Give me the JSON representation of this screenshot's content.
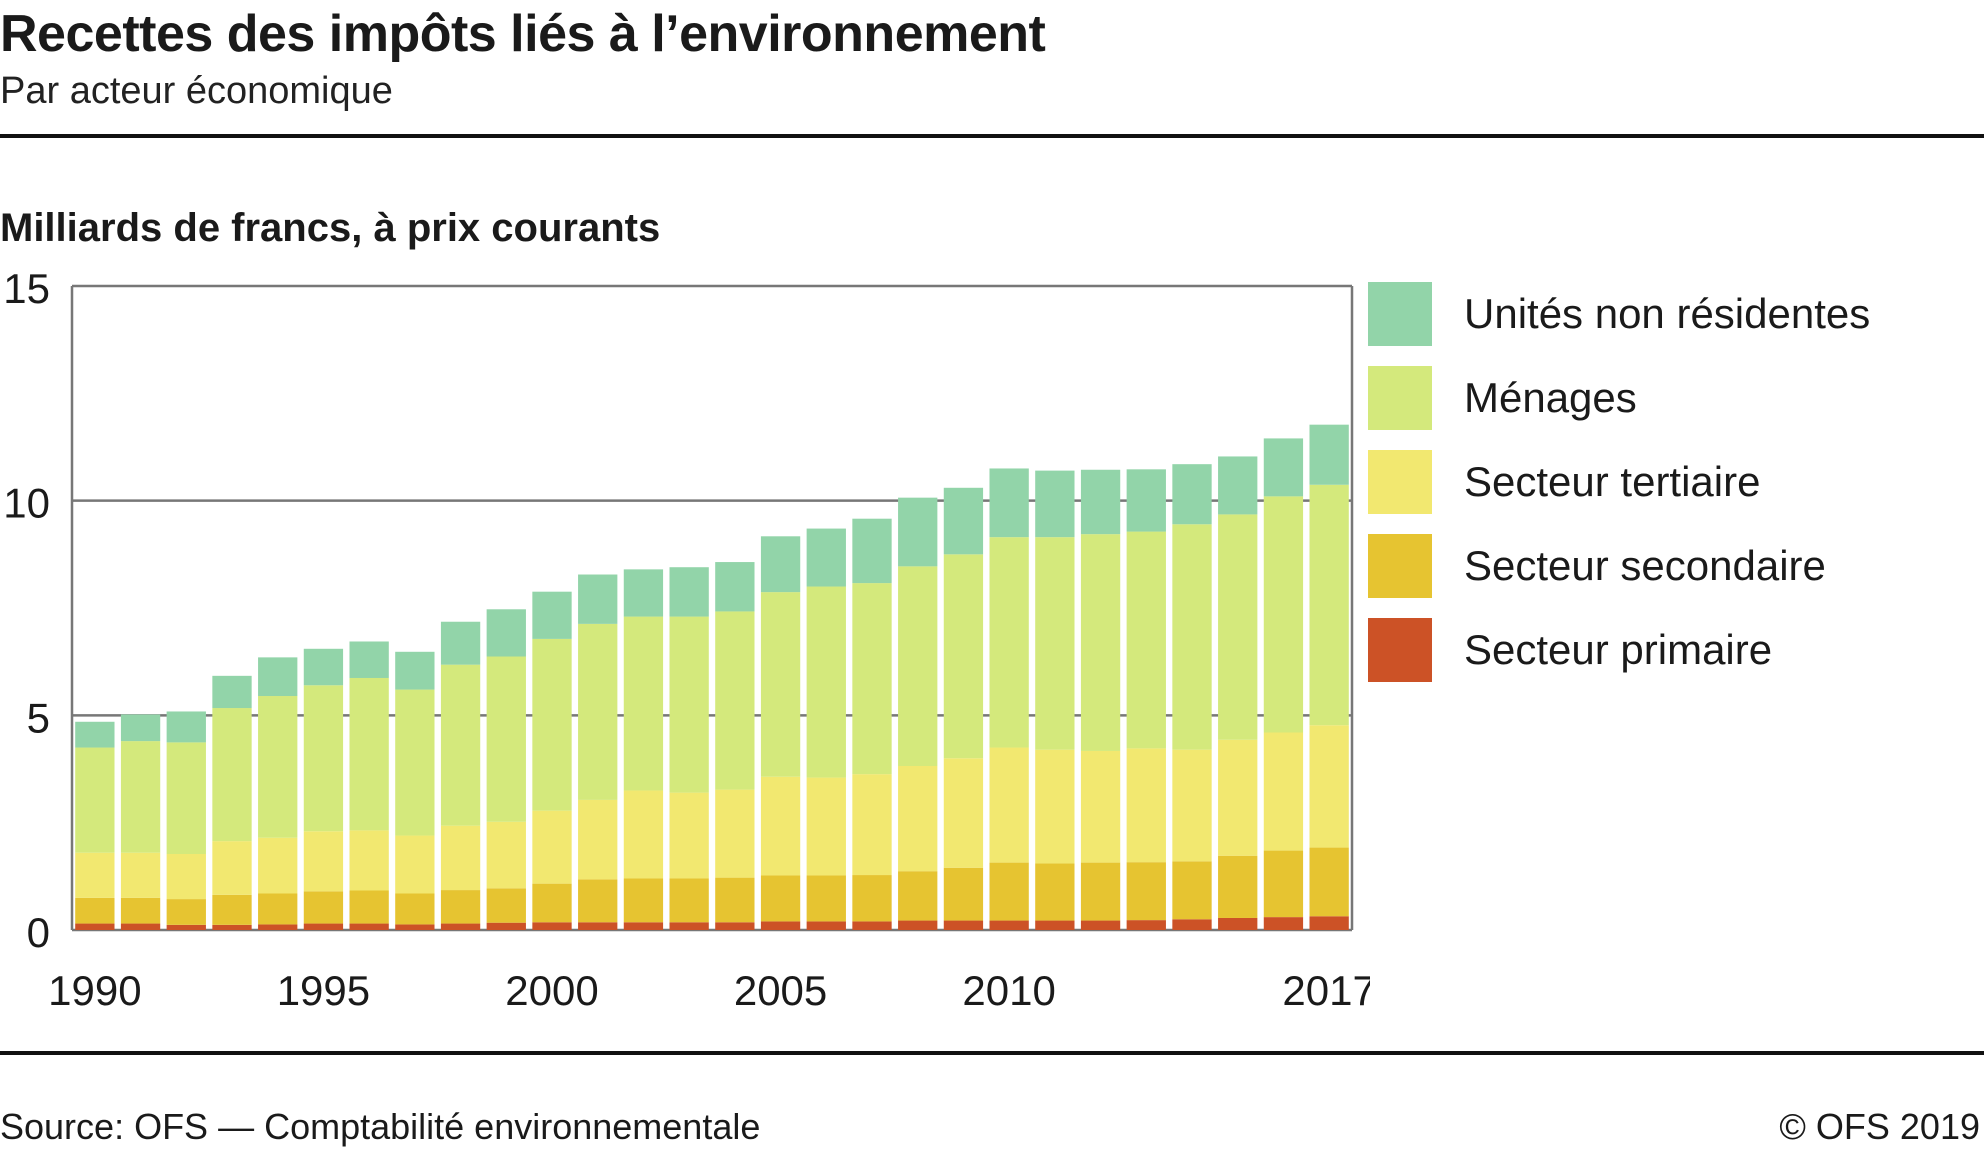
{
  "header": {
    "title": "Recettes des impôts liés à l’environnement",
    "subtitle": "Par acteur économique"
  },
  "unit_label": "Milliards de francs, à prix courants",
  "footer": {
    "source": "Source: OFS — Comptabilité environnementale",
    "copyright": "© OFS 2019"
  },
  "colors": {
    "Secteur primaire": "#cc5226",
    "Secteur secondaire": "#e6c431",
    "Secteur tertiaire": "#f2e870",
    "Ménages": "#d4e97c",
    "Unités non résidentes": "#92d4a9"
  },
  "legend": [
    {
      "label": "Unités non résidentes",
      "color": "#92d4a9"
    },
    {
      "label": "Ménages",
      "color": "#d4e97c"
    },
    {
      "label": "Secteur tertiaire",
      "color": "#f2e870"
    },
    {
      "label": "Secteur secondaire",
      "color": "#e6c431"
    },
    {
      "label": "Secteur primaire",
      "color": "#cc5226"
    }
  ],
  "chart_data": {
    "type": "bar",
    "stacked": true,
    "title": "Recettes des impôts liés à l’environnement",
    "subtitle": "Par acteur économique",
    "ylabel": "Milliards de francs, à prix courants",
    "ylim": [
      0,
      15
    ],
    "yticks": [
      0,
      5,
      10,
      15
    ],
    "grid": true,
    "legend_position": "right",
    "categories": [
      1990,
      1991,
      1992,
      1993,
      1994,
      1995,
      1996,
      1997,
      1998,
      1999,
      2000,
      2001,
      2002,
      2003,
      2004,
      2005,
      2006,
      2007,
      2008,
      2009,
      2010,
      2011,
      2012,
      2013,
      2014,
      2015,
      2016,
      2017
    ],
    "xtick_labels": [
      "1990",
      "1995",
      "2000",
      "2005",
      "2010",
      "2017"
    ],
    "series": [
      {
        "name": "Secteur primaire",
        "values": [
          0.15,
          0.15,
          0.12,
          0.12,
          0.13,
          0.15,
          0.15,
          0.13,
          0.15,
          0.17,
          0.18,
          0.18,
          0.18,
          0.18,
          0.18,
          0.2,
          0.2,
          0.2,
          0.22,
          0.22,
          0.22,
          0.22,
          0.22,
          0.23,
          0.25,
          0.28,
          0.3,
          0.32
        ]
      },
      {
        "name": "Secteur secondaire",
        "values": [
          0.6,
          0.6,
          0.6,
          0.7,
          0.72,
          0.75,
          0.77,
          0.72,
          0.78,
          0.8,
          0.9,
          1.0,
          1.02,
          1.02,
          1.04,
          1.07,
          1.07,
          1.08,
          1.15,
          1.23,
          1.35,
          1.33,
          1.35,
          1.35,
          1.35,
          1.45,
          1.55,
          1.6
        ]
      },
      {
        "name": "Secteur tertiaire",
        "values": [
          1.05,
          1.05,
          1.05,
          1.25,
          1.3,
          1.4,
          1.4,
          1.35,
          1.5,
          1.55,
          1.7,
          1.85,
          2.05,
          2.0,
          2.05,
          2.3,
          2.28,
          2.35,
          2.45,
          2.55,
          2.68,
          2.65,
          2.6,
          2.65,
          2.6,
          2.7,
          2.75,
          2.85
        ]
      },
      {
        "name": "Ménages",
        "values": [
          2.45,
          2.6,
          2.6,
          3.1,
          3.3,
          3.4,
          3.55,
          3.4,
          3.75,
          3.85,
          4.0,
          4.1,
          4.05,
          4.1,
          4.15,
          4.3,
          4.45,
          4.45,
          4.65,
          4.75,
          4.9,
          4.95,
          5.05,
          5.05,
          5.25,
          5.25,
          5.5,
          5.6
        ]
      },
      {
        "name": "Unités non résidentes",
        "values": [
          0.6,
          0.62,
          0.72,
          0.75,
          0.9,
          0.85,
          0.85,
          0.88,
          1.0,
          1.1,
          1.1,
          1.15,
          1.1,
          1.15,
          1.15,
          1.3,
          1.35,
          1.5,
          1.6,
          1.55,
          1.6,
          1.55,
          1.5,
          1.45,
          1.4,
          1.35,
          1.35,
          1.4
        ]
      }
    ]
  }
}
